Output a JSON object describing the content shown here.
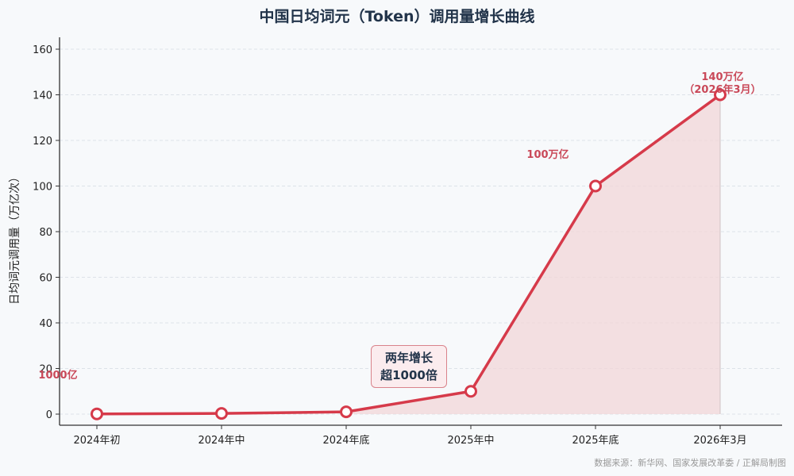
{
  "title": "中国日均词元（Token）调用量增长曲线",
  "y_axis_label": "日均词元调用量（万亿次）",
  "source": "数据来源：新华网、国家发展改革委 / 正解局制图",
  "callout": {
    "line1": "两年增长",
    "line2": "超1000倍"
  },
  "annotations": {
    "start": "1000亿",
    "mid": "100万亿",
    "end_line1": "140万亿",
    "end_line2": "（2026年3月）"
  },
  "colors": {
    "line": "#d63a4a",
    "fill": "#f2d5d8",
    "marker_fill": "#ffffff"
  },
  "chart_data": {
    "type": "line",
    "title": "中国日均词元（Token）调用量增长曲线",
    "xlabel": "",
    "ylabel": "日均词元调用量（万亿次）",
    "categories": [
      "2024年初",
      "2024年中",
      "2024年底",
      "2025年中",
      "2025年底",
      "2026年3月"
    ],
    "series": [
      {
        "name": "日均词元调用量",
        "values": [
          0.1,
          0.3,
          1,
          10,
          100,
          140
        ]
      }
    ],
    "ylim": [
      0,
      160
    ],
    "yticks": [
      0,
      20,
      40,
      60,
      80,
      100,
      120,
      140,
      160
    ],
    "grid": true,
    "annotations": [
      "1000亿",
      "100万亿",
      "140万亿（2026年3月）",
      "两年增长超1000倍"
    ]
  }
}
